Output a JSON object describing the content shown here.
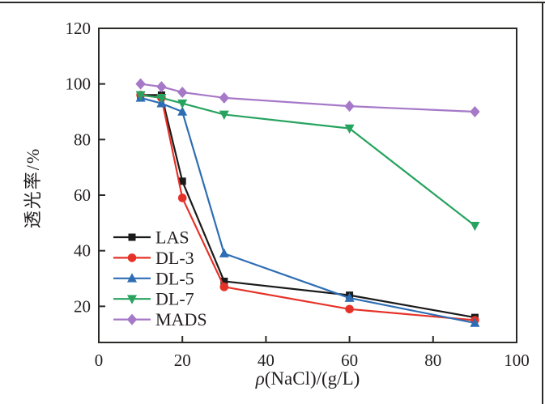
{
  "figure": {
    "xlabel_symbol": "ρ",
    "xlabel_suffix": "(NaCl)/(g/L)",
    "ylabel": "透光率/%"
  },
  "chart_data": {
    "type": "line",
    "title": "",
    "xlabel": "ρ(NaCl)/(g/L)",
    "ylabel": "透光率/%",
    "x": [
      10,
      15,
      20,
      30,
      60,
      90
    ],
    "xticks": [
      0,
      20,
      40,
      60,
      80,
      100
    ],
    "yticks": [
      20,
      40,
      60,
      80,
      100,
      120
    ],
    "xlim": [
      0,
      100
    ],
    "ylim": [
      7,
      120
    ],
    "grid": false,
    "legend_position": "inside lower-left",
    "legend_entries": [
      "LAS",
      "DL-3",
      "DL-5",
      "DL-7",
      "MADS"
    ],
    "series": [
      {
        "name": "LAS",
        "color": "#1a1a1a",
        "marker": "square",
        "values": [
          96,
          96,
          65,
          29,
          24,
          16
        ]
      },
      {
        "name": "DL-3",
        "color": "#e53228",
        "marker": "circle",
        "values": [
          96,
          95,
          59,
          27,
          19,
          15
        ]
      },
      {
        "name": "DL-5",
        "color": "#2e6db4",
        "marker": "triangle-up",
        "values": [
          95,
          93,
          90,
          39,
          23,
          14
        ]
      },
      {
        "name": "DL-7",
        "color": "#27a35f",
        "marker": "triangle-down",
        "values": [
          96,
          95,
          93,
          89,
          84,
          49
        ]
      },
      {
        "name": "MADS",
        "color": "#a678c8",
        "marker": "diamond",
        "values": [
          100,
          99,
          97,
          95,
          92,
          90
        ]
      }
    ],
    "frame_color": "#2b2a28",
    "text_color": "#231f20"
  }
}
